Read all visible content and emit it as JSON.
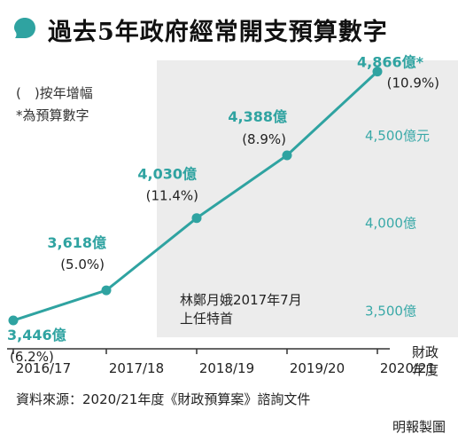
{
  "title": "過去5年政府經常開支預算數字",
  "legend": {
    "line1": "(　)按年增幅",
    "line2": "*為預算數字"
  },
  "source": "資料來源：2020/21年度《財政預算案》諮詢文件",
  "credit": "明報製圖",
  "colors": {
    "accent": "#2fa3a1",
    "highlight_band": "#ececec",
    "axis": "#333333"
  },
  "chart_data": {
    "type": "line",
    "x_unit_label": [
      "財政",
      "年度"
    ],
    "categories": [
      "2016/17",
      "2017/18",
      "2018/19",
      "2019/20",
      "2020/21"
    ],
    "values": [
      3446,
      3618,
      4030,
      4388,
      4866
    ],
    "value_labels": [
      "3,446億",
      "3,618億",
      "4,030億",
      "4,388億",
      "4,866億*"
    ],
    "growth_labels": [
      "(6.2%)",
      "(5.0%)",
      "(11.4%)",
      "(8.9%)",
      "(10.9%)"
    ],
    "y_ticks": [
      {
        "value": 3500,
        "label": "3,500億"
      },
      {
        "value": 4000,
        "label": "4,000億"
      },
      {
        "value": 4500,
        "label": "4,500億元"
      }
    ],
    "ylim": [
      3350,
      4950
    ],
    "highlight_from": "2017/18",
    "annotation": [
      "林鄭月娥2017年7月",
      "上任特首"
    ],
    "grid": false
  }
}
